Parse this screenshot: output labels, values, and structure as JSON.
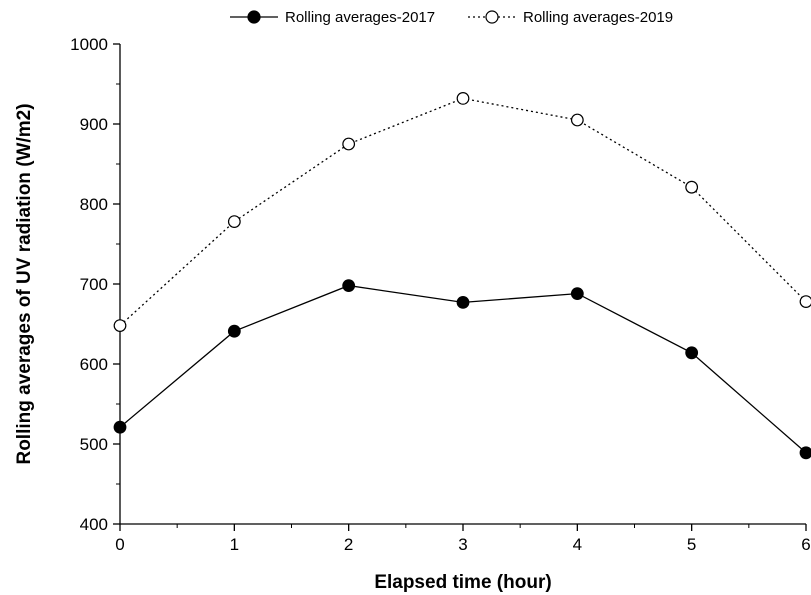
{
  "chart_data": {
    "type": "line",
    "title": "",
    "xlabel": "Elapsed time (hour)",
    "ylabel": "Rolling averages of UV radiation (W/m2)",
    "x": [
      0,
      1,
      2,
      3,
      4,
      5,
      6
    ],
    "xlim": [
      0,
      6
    ],
    "ylim": [
      400,
      1000
    ],
    "x_ticks": [
      0,
      1,
      2,
      3,
      4,
      5,
      6
    ],
    "y_ticks": [
      400,
      500,
      600,
      700,
      800,
      900,
      1000
    ],
    "grid": false,
    "legend_position": "top",
    "series": [
      {
        "name": "Rolling averages-2017",
        "marker": "filled-circle",
        "line": "solid",
        "color": "#000000",
        "values": [
          521,
          641,
          698,
          677,
          688,
          614,
          489
        ]
      },
      {
        "name": "Rolling averages-2019",
        "marker": "open-circle",
        "line": "dotted",
        "color": "#000000",
        "values": [
          648,
          778,
          875,
          932,
          905,
          821,
          678
        ]
      }
    ]
  }
}
